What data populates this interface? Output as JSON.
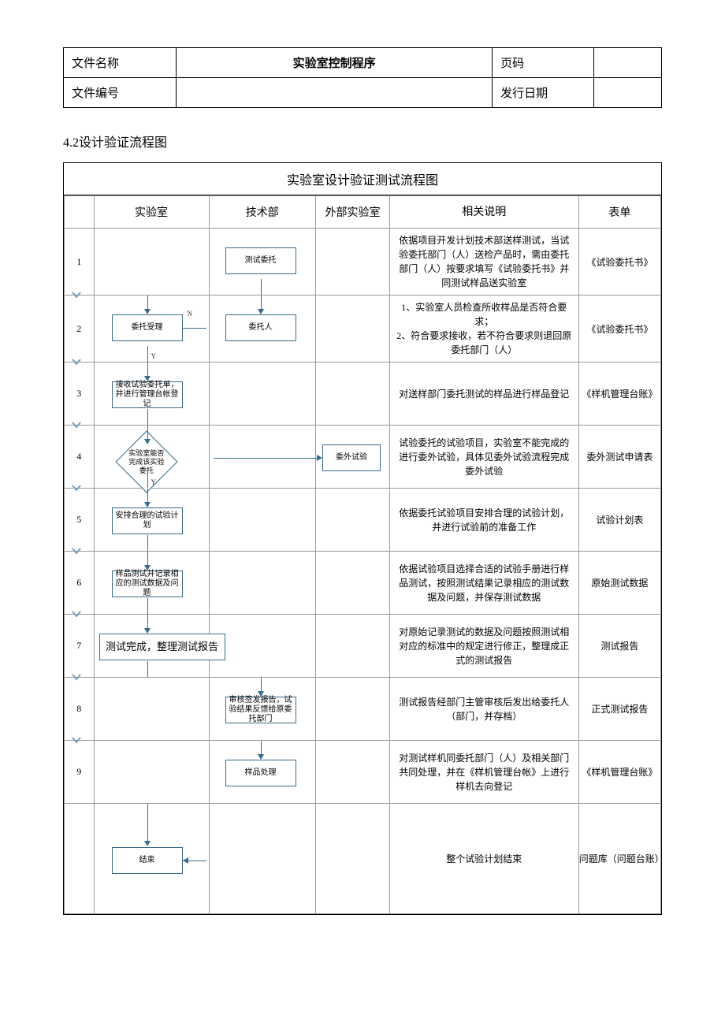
{
  "header": {
    "file_name_label": "文件名称",
    "title": "实验室控制程序",
    "page_label": "页码",
    "page_value": "",
    "file_no_label": "文件编号",
    "file_no_value": "",
    "issue_date_label": "发行日期",
    "issue_date_value": ""
  },
  "section_title": "4.2设计验证流程图",
  "flow_title": "实验室设计验证测试流程图",
  "columns": [
    "",
    "实验室",
    "技术部",
    "外部实验室",
    "相关说明",
    "表单"
  ],
  "colors": {
    "node_border": "#3a6b8a",
    "grid_border": "#999999",
    "outer_border": "#000000"
  },
  "rows": [
    {
      "num": "1",
      "lab_node": null,
      "tech_node": {
        "text": "测试委托",
        "type": "rect"
      },
      "ext_node": null,
      "desc": "依据项目开发计划技术部送样测试，当试验委托部门（人）送检产品时，需由委托部门（人）按要求填写《试验委托书》并同测试样品送实验室",
      "form": "《试验委托书》",
      "yn": null
    },
    {
      "num": "2",
      "lab_node": {
        "text": "委托受理",
        "type": "rect"
      },
      "tech_node": {
        "text": "委托人",
        "type": "rect"
      },
      "ext_node": null,
      "desc": "1、实验室人员检查所收样品是否符合要求；\n2、符合要求接收，若不符合要求则退回原委托部门（人）",
      "form": "《试验委托书》",
      "yn": {
        "n": true,
        "y": true
      }
    },
    {
      "num": "3",
      "lab_node": {
        "text": "接收试验委托单，并进行管理台帐登记",
        "type": "rect"
      },
      "tech_node": null,
      "ext_node": null,
      "desc": "对送样部门委托测试的样品进行样品登记",
      "form": "《样机管理台账》",
      "yn": null
    },
    {
      "num": "4",
      "lab_node": {
        "text": "实验室能否完成该实验委托",
        "type": "diamond"
      },
      "tech_node": null,
      "ext_node": {
        "text": "委外试验",
        "type": "rect"
      },
      "desc": "试验委托的试验项目，实验室不能完成的进行委外试验，具体见委外试验流程完成委外试验",
      "form": "委外测试申请表",
      "yn": {
        "y": true
      }
    },
    {
      "num": "5",
      "lab_node": {
        "text": "安排合理的试验计划",
        "type": "rect"
      },
      "tech_node": null,
      "ext_node": null,
      "desc": "依据委托试验项目安排合理的试验计划，并进行试验前的准备工作",
      "form": "试验计划表",
      "yn": null
    },
    {
      "num": "6",
      "lab_node": {
        "text": "样品测试并记录相应的测试数据及问题",
        "type": "rect"
      },
      "tech_node": null,
      "ext_node": null,
      "desc": "依据试验项目选择合适的试验手册进行样品测试，按照测试结果记录相应的测试数据及问题，并保存测试数据",
      "form": "原始测试数据",
      "yn": null
    },
    {
      "num": "7",
      "lab_node": {
        "text": "测试完成，整理测试报告",
        "type": "rect",
        "wide": true
      },
      "tech_node": null,
      "ext_node": null,
      "desc": "对原始记录测试的数据及问题按照测试相对应的标准中的规定进行修正，整理成正式的测试报告",
      "form": "测试报告",
      "yn": null
    },
    {
      "num": "8",
      "lab_node": null,
      "tech_node": {
        "text": "审核签发报告，试验结果反馈给原委托部门",
        "type": "rect"
      },
      "ext_node": null,
      "desc": "测试报告经部门主管审核后发出给委托人（部门，并存档）",
      "form": "正式测试报告",
      "yn": null
    },
    {
      "num": "9",
      "lab_node": null,
      "tech_node": {
        "text": "样品处理",
        "type": "rect"
      },
      "ext_node": null,
      "desc": "对测试样机同委托部门（人）及相关部门共同处理，并在《样机管理台帐》上进行样机去向登记",
      "form": "《样机管理台账》",
      "yn": null,
      "merge_form_below": true
    },
    {
      "num": "",
      "lab_node": {
        "text": "结束",
        "type": "rect"
      },
      "tech_node": null,
      "ext_node": null,
      "desc": "整个试验计划结束",
      "form": "问题库（问题台账）",
      "yn": null,
      "end": true
    }
  ]
}
